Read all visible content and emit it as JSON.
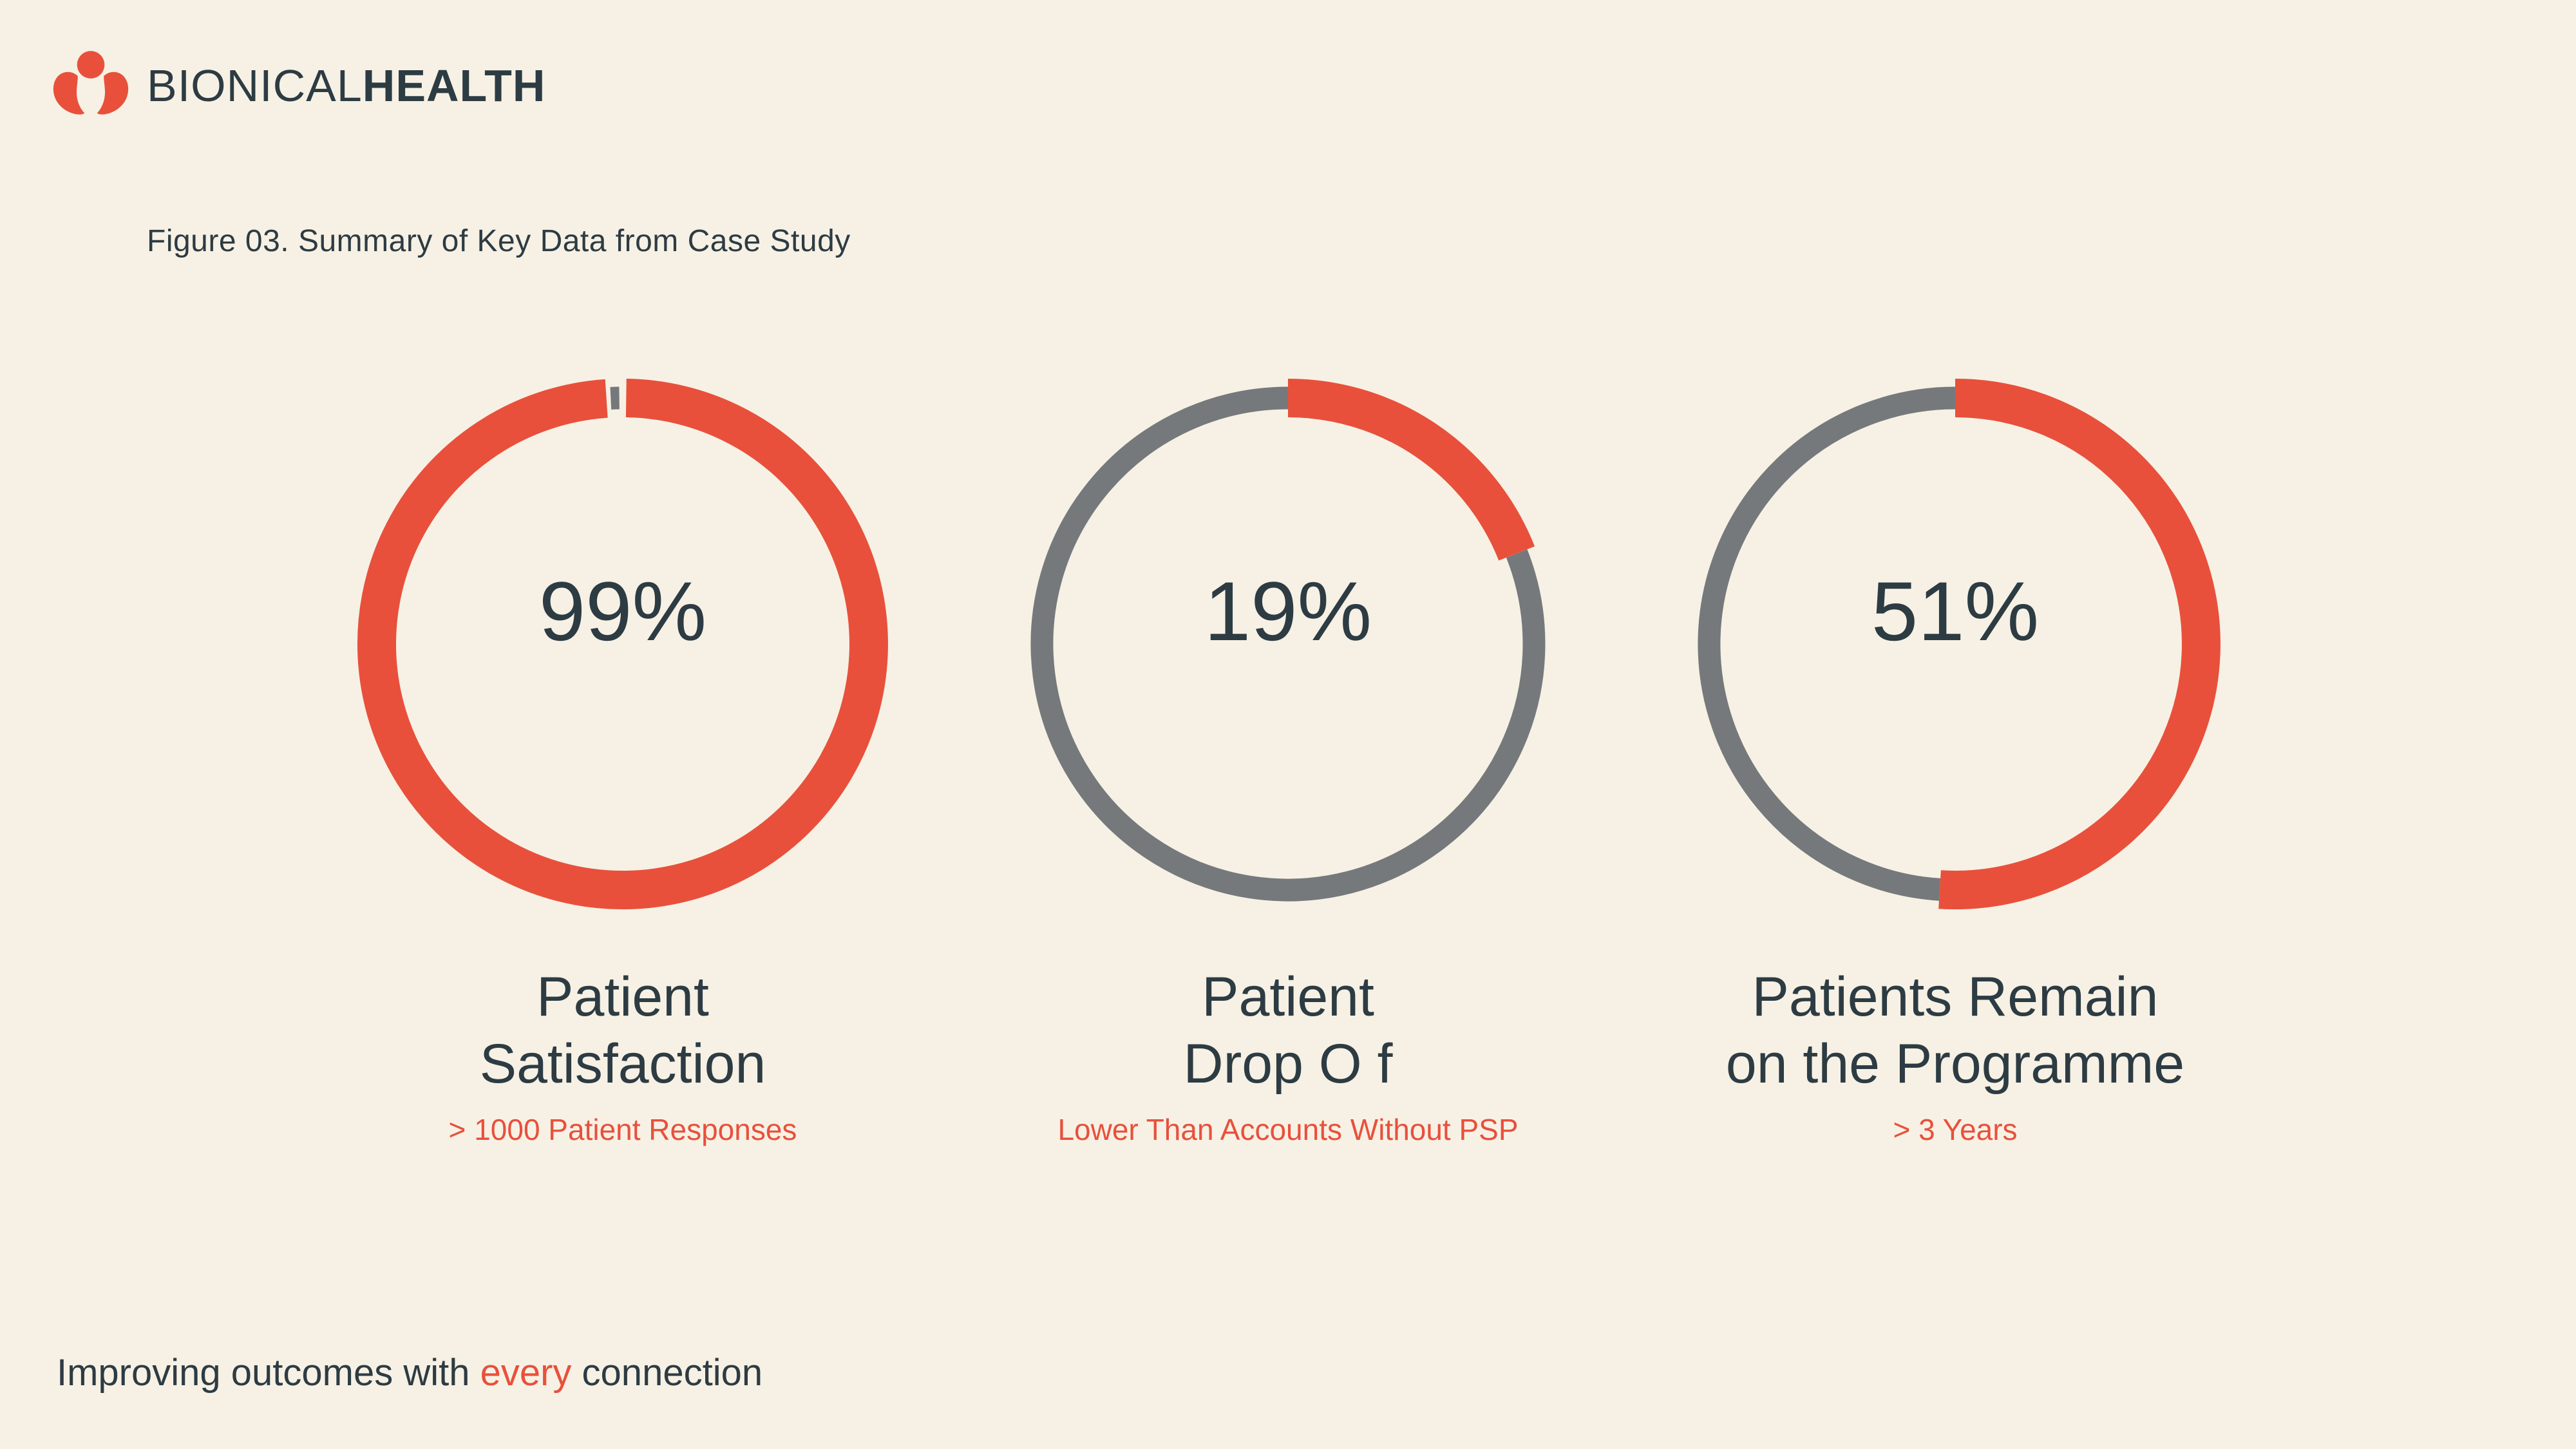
{
  "colors": {
    "background": "#F6F1E4",
    "accent_red": "#E8503C",
    "ring_gray": "#75797C",
    "text_dark": "#2D3B43"
  },
  "logo": {
    "icon": "person-heart-icon",
    "brand_light": "BIONICAL",
    "brand_bold": "HEALTH"
  },
  "figure_caption": "Figure 03. Summary of Key Data from Case Study",
  "chart_data": {
    "type": "donut",
    "title": "Figure 03. Summary of Key Data from Case Study",
    "unit": "%",
    "arc_start": "top",
    "arc_direction": "clockwise",
    "filled_color": "#E8503C",
    "track_color": "#75797C",
    "donuts": [
      {
        "value": 99,
        "display_value": "99%",
        "label_lines": [
          "Patient",
          "Satisfaction"
        ],
        "sublabel": "> 1000 Patient Responses"
      },
      {
        "value": 19,
        "display_value": "19%",
        "label_lines": [
          "Patient",
          "Drop O f"
        ],
        "sublabel": "Lower Than Accounts Without PSP"
      },
      {
        "value": 51,
        "display_value": "51%",
        "label_lines": [
          "Patients Remain",
          "on the Programme"
        ],
        "sublabel": "> 3 Years"
      }
    ]
  },
  "tagline": {
    "prefix": "Improving outcomes with ",
    "highlight": "every",
    "suffix": " connection"
  }
}
